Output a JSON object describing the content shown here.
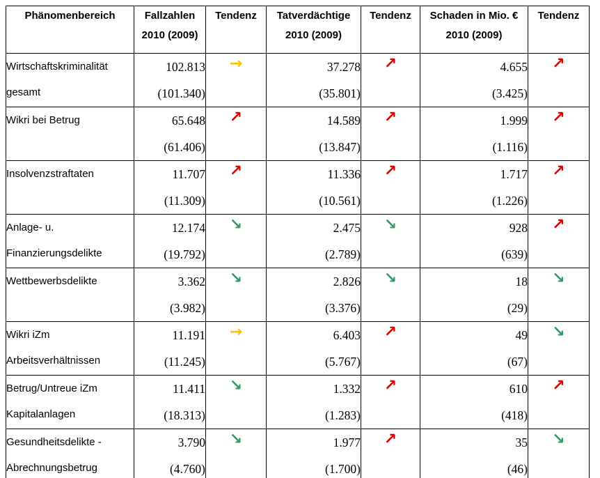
{
  "table": {
    "headers": [
      {
        "line1": "Phänomenbereich",
        "line2": ""
      },
      {
        "line1": "Fallzahlen",
        "line2": "2010 (2009)"
      },
      {
        "line1": "Tendenz",
        "line2": ""
      },
      {
        "line1": "Tatverdächtige",
        "line2": "2010 (2009)"
      },
      {
        "line1": "Tendenz",
        "line2": ""
      },
      {
        "line1": "Schaden in Mio. €",
        "line2": "2010 (2009)"
      },
      {
        "line1": "Tendenz",
        "line2": ""
      }
    ],
    "rows": [
      {
        "label1": "Wirtschaftskriminalität",
        "label2": "gesamt",
        "fallzahlen": "102.813",
        "fallzahlen_prev": "(101.340)",
        "t1": "flat",
        "t1_glyph": "→",
        "tatverdaechtige": "37.278",
        "tatverdaechtige_prev": "(35.801)",
        "t2": "up",
        "t2_glyph": "↗",
        "schaden": "4.655",
        "schaden_prev": "(3.425)",
        "t3": "up",
        "t3_glyph": "↗"
      },
      {
        "label1": "Wikri bei Betrug",
        "label2": "",
        "fallzahlen": "65.648",
        "fallzahlen_prev": "(61.406)",
        "t1": "up",
        "t1_glyph": "↗",
        "tatverdaechtige": "14.589",
        "tatverdaechtige_prev": "(13.847)",
        "t2": "up",
        "t2_glyph": "↗",
        "schaden": "1.999",
        "schaden_prev": "(1.116)",
        "t3": "up",
        "t3_glyph": "↗"
      },
      {
        "label1": "Insolvenzstraftaten",
        "label2": "",
        "fallzahlen": "11.707",
        "fallzahlen_prev": "(11.309)",
        "t1": "up",
        "t1_glyph": "↗",
        "tatverdaechtige": "11.336",
        "tatverdaechtige_prev": "(10.561)",
        "t2": "up",
        "t2_glyph": "↗",
        "schaden": "1.717",
        "schaden_prev": "(1.226)",
        "t3": "up",
        "t3_glyph": "↗"
      },
      {
        "label1": "Anlage- u.",
        "label2": "Finanzierungsdelikte",
        "fallzahlen": "12.174",
        "fallzahlen_prev": "(19.792)",
        "t1": "down",
        "t1_glyph": "↘",
        "tatverdaechtige": "2.475",
        "tatverdaechtige_prev": "(2.789)",
        "t2": "down",
        "t2_glyph": "↘",
        "schaden": "928",
        "schaden_prev": "(639)",
        "t3": "up",
        "t3_glyph": "↗"
      },
      {
        "label1": "Wettbewerbsdelikte",
        "label2": "",
        "fallzahlen": "3.362",
        "fallzahlen_prev": "(3.982)",
        "t1": "down",
        "t1_glyph": "↘",
        "tatverdaechtige": "2.826",
        "tatverdaechtige_prev": "(3.376)",
        "t2": "down",
        "t2_glyph": "↘",
        "schaden": "18",
        "schaden_prev": "(29)",
        "t3": "down",
        "t3_glyph": "↘"
      },
      {
        "label1": "Wikri iZm",
        "label2": "Arbeitsverhältnissen",
        "fallzahlen": "11.191",
        "fallzahlen_prev": "(11.245)",
        "t1": "flat",
        "t1_glyph": "→",
        "tatverdaechtige": "6.403",
        "tatverdaechtige_prev": "(5.767)",
        "t2": "up",
        "t2_glyph": "↗",
        "schaden": "49",
        "schaden_prev": "(67)",
        "t3": "down",
        "t3_glyph": "↘"
      },
      {
        "label1": "Betrug/Untreue iZm",
        "label2": "Kapitalanlagen",
        "fallzahlen": "11.411",
        "fallzahlen_prev": "(18.313)",
        "t1": "down",
        "t1_glyph": "↘",
        "tatverdaechtige": "1.332",
        "tatverdaechtige_prev": "(1.283)",
        "t2": "up",
        "t2_glyph": "↗",
        "schaden": "610",
        "schaden_prev": "(418)",
        "t3": "up",
        "t3_glyph": "↗"
      },
      {
        "label1": "Gesundheitsdelikte -",
        "label2": "Abrechnungsbetrug",
        "fallzahlen": "3.790",
        "fallzahlen_prev": "(4.760)",
        "t1": "down",
        "t1_glyph": "↘",
        "tatverdaechtige": "1.977",
        "tatverdaechtige_prev": "(1.700)",
        "t2": "up",
        "t2_glyph": "↗",
        "schaden": "35",
        "schaden_prev": "(46)",
        "t3": "down",
        "t3_glyph": "↘"
      }
    ],
    "colors": {
      "trend_up": "#e00000",
      "trend_flat": "#ffc000",
      "trend_down": "#339966",
      "border": "#000000"
    }
  }
}
